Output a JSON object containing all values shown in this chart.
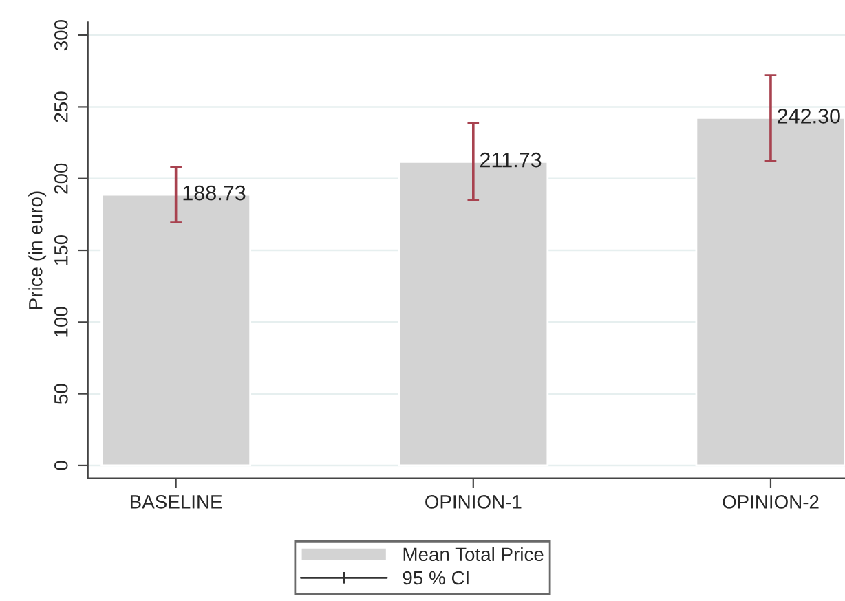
{
  "chart_data": {
    "type": "bar",
    "ylabel": "Price (in euro)",
    "categories": [
      "BASELINE",
      "OPINION-1",
      "OPINION-2"
    ],
    "series": [
      {
        "name": "Mean Total Price",
        "color": "#d3d3d3",
        "values": [
          188.73,
          211.73,
          242.3
        ],
        "errors": [
          [
            169.4,
            208.0
          ],
          [
            184.9,
            238.7
          ],
          [
            212.5,
            272.0
          ]
        ],
        "value_labels": [
          "188.73",
          "211.73",
          "242.30"
        ]
      }
    ],
    "annotations": [
      "95 % CI"
    ],
    "ylim": [
      -9,
      309
    ],
    "yticks": [
      0,
      50,
      100,
      150,
      200,
      250,
      300
    ],
    "grid": "y",
    "legend": "bottom"
  }
}
